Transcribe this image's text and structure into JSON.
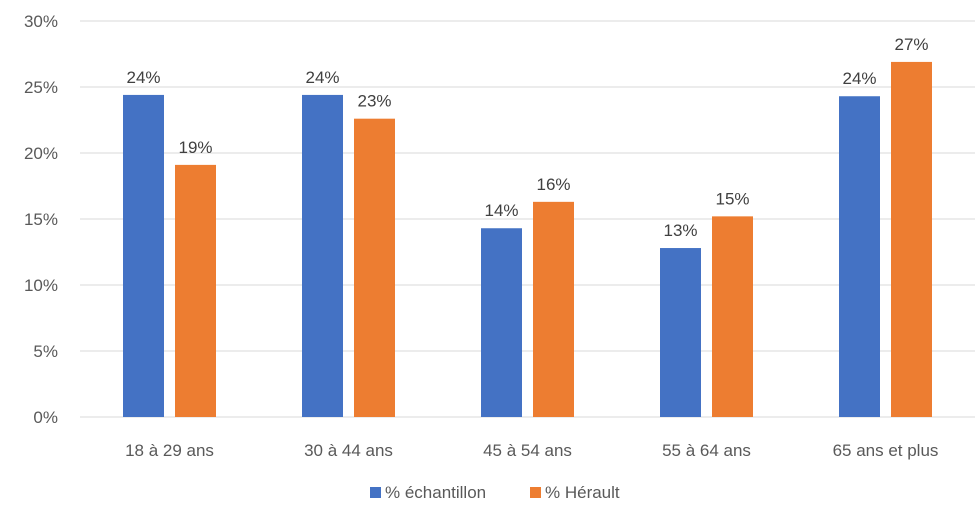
{
  "chart_data": {
    "type": "bar",
    "categories": [
      "18 à 29 ans",
      "30 à 44 ans",
      "45 à 54 ans",
      "55 à 64 ans",
      "65 ans et plus"
    ],
    "series": [
      {
        "name": "% échantillon",
        "color": "#4472C4",
        "values": [
          24.4,
          24.4,
          14.3,
          12.8,
          24.3
        ],
        "labels": [
          "24%",
          "24%",
          "14%",
          "13%",
          "24%"
        ]
      },
      {
        "name": "% Hérault",
        "color": "#ED7D31",
        "values": [
          19.1,
          22.6,
          16.3,
          15.2,
          26.9
        ],
        "labels": [
          "19%",
          "23%",
          "16%",
          "15%",
          "27%"
        ]
      }
    ],
    "ylim": [
      0,
      30
    ],
    "yticks": [
      0,
      5,
      10,
      15,
      20,
      25,
      30
    ],
    "ytick_labels": [
      "0%",
      "5%",
      "10%",
      "15%",
      "20%",
      "25%",
      "30%"
    ],
    "grid": true,
    "legend": "bottom",
    "gridline_color": "#D9D9D9"
  }
}
